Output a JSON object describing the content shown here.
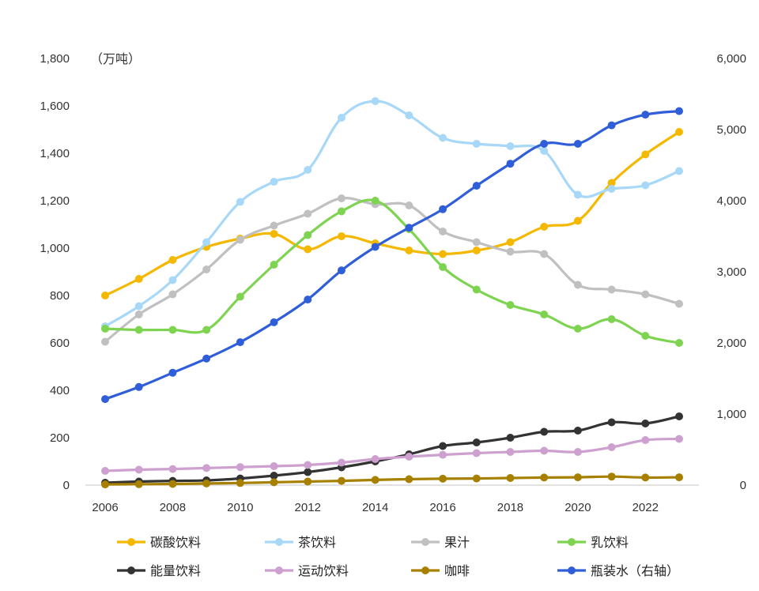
{
  "chart_data": {
    "type": "line",
    "left_axis_unit": "（万吨）",
    "x": [
      2006,
      2007,
      2008,
      2009,
      2010,
      2011,
      2012,
      2013,
      2014,
      2015,
      2016,
      2017,
      2018,
      2019,
      2020,
      2021,
      2022,
      2023
    ],
    "x_ticks": [
      "2006",
      "2008",
      "2010",
      "2012",
      "2014",
      "2016",
      "2018",
      "2020",
      "2022"
    ],
    "y_left_ticks": [
      "0",
      "200",
      "400",
      "600",
      "800",
      "1,000",
      "1,200",
      "1,400",
      "1,600",
      "1,800"
    ],
    "y_right_ticks": [
      "0",
      "1,000",
      "2,000",
      "3,000",
      "4,000",
      "5,000",
      "6,000"
    ],
    "ylim_left": [
      0,
      1800
    ],
    "ylim_right": [
      0,
      6000
    ],
    "grid": false,
    "legend_position": "bottom",
    "series": [
      {
        "name": "碳酸饮料",
        "color": "#F5B800",
        "axis": "left",
        "values": [
          800,
          870,
          950,
          1005,
          1040,
          1060,
          995,
          1050,
          1020,
          990,
          975,
          990,
          1025,
          1090,
          1115,
          1275,
          1395,
          1490
        ]
      },
      {
        "name": "茶饮料",
        "color": "#A8D8F8",
        "axis": "left",
        "values": [
          670,
          755,
          865,
          1025,
          1195,
          1280,
          1330,
          1550,
          1620,
          1560,
          1465,
          1440,
          1430,
          1410,
          1225,
          1250,
          1265,
          1325
        ]
      },
      {
        "name": "果汁",
        "color": "#C0C0C0",
        "axis": "left",
        "values": [
          605,
          720,
          805,
          910,
          1035,
          1095,
          1145,
          1210,
          1185,
          1180,
          1070,
          1025,
          985,
          975,
          845,
          825,
          805,
          765
        ]
      },
      {
        "name": "乳饮料",
        "color": "#7ED451",
        "axis": "left",
        "values": [
          660,
          655,
          655,
          655,
          795,
          930,
          1055,
          1155,
          1200,
          1080,
          920,
          825,
          760,
          720,
          660,
          700,
          630,
          600
        ]
      },
      {
        "name": "能量饮料",
        "color": "#333333",
        "axis": "left",
        "values": [
          10,
          15,
          18,
          20,
          28,
          40,
          55,
          75,
          100,
          130,
          165,
          180,
          200,
          225,
          230,
          265,
          260,
          290
        ]
      },
      {
        "name": "运动饮料",
        "color": "#CDA0CF",
        "axis": "left",
        "values": [
          60,
          65,
          68,
          72,
          76,
          80,
          85,
          95,
          110,
          120,
          128,
          135,
          140,
          145,
          140,
          160,
          190,
          195
        ]
      },
      {
        "name": "咖啡",
        "color": "#A88000",
        "axis": "left",
        "values": [
          3,
          4,
          5,
          7,
          9,
          12,
          15,
          18,
          22,
          25,
          27,
          28,
          30,
          32,
          33,
          36,
          32,
          33
        ]
      },
      {
        "name": "瓶装水（右轴）",
        "color": "#2F5ED8",
        "axis": "right",
        "values": [
          1210,
          1380,
          1580,
          1780,
          2010,
          2290,
          2610,
          3020,
          3350,
          3620,
          3880,
          4210,
          4520,
          4800,
          4800,
          5060,
          5210,
          5260
        ]
      }
    ]
  }
}
